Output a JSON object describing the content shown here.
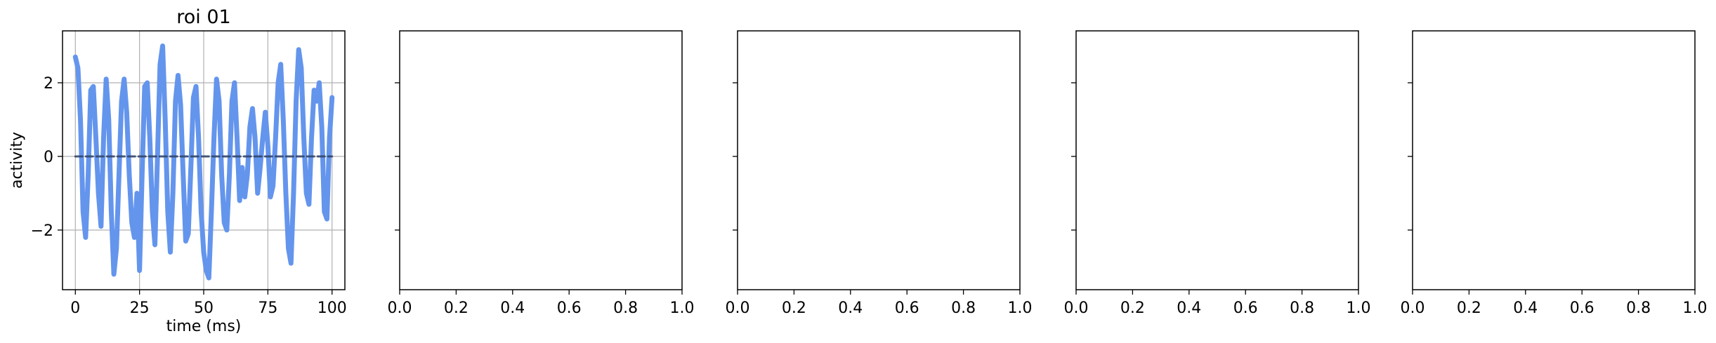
{
  "chart_data": [
    {
      "type": "line",
      "title": "roi 01",
      "xlabel": "time (ms)",
      "ylabel": "activity",
      "grid": true,
      "xlim": [
        -5,
        105
      ],
      "xticks": [
        0,
        25,
        50,
        75,
        100
      ],
      "ylim": [
        -3.62,
        3.41
      ],
      "yticks": [
        {
          "value": -2,
          "label": "−2"
        },
        0,
        2
      ],
      "series": [
        {
          "color": "#6495ed",
          "x": [
            0,
            1,
            2,
            3,
            4,
            5,
            6,
            7,
            8,
            9,
            10,
            11,
            12,
            13,
            14,
            15,
            16,
            17,
            18,
            19,
            20,
            21,
            22,
            23,
            24,
            25,
            26,
            27,
            28,
            29,
            30,
            31,
            32,
            33,
            34,
            35,
            36,
            37,
            38,
            39,
            40,
            41,
            42,
            43,
            44,
            45,
            46,
            47,
            48,
            49,
            50,
            51,
            52,
            53,
            54,
            55,
            56,
            57,
            58,
            59,
            60,
            61,
            62,
            63,
            64,
            65,
            66,
            67,
            68,
            69,
            70,
            71,
            72,
            73,
            74,
            75,
            76,
            77,
            78,
            79,
            80,
            81,
            82,
            83,
            84,
            85,
            86,
            87,
            88,
            89,
            90,
            91,
            92,
            93,
            94,
            95,
            96,
            97,
            98,
            99,
            100
          ],
          "values": [
            2.7,
            2.4,
            1.0,
            -1.5,
            -2.2,
            -0.5,
            1.8,
            1.9,
            0.5,
            -1.0,
            -1.9,
            0.5,
            2.1,
            1.0,
            -1.5,
            -3.2,
            -2.5,
            -0.5,
            1.5,
            2.1,
            1.2,
            -0.5,
            -1.8,
            -2.2,
            -1.0,
            -3.1,
            -0.5,
            1.9,
            2.0,
            0.5,
            -1.5,
            -2.4,
            0.0,
            2.5,
            3.0,
            1.0,
            -1.5,
            -2.6,
            -1.0,
            1.5,
            2.2,
            1.4,
            -0.5,
            -2.3,
            -2.1,
            -0.3,
            1.6,
            1.9,
            0.5,
            -1.5,
            -2.6,
            -3.1,
            -3.3,
            -1.5,
            0.5,
            2.1,
            1.5,
            -0.5,
            -1.8,
            -2.0,
            -0.5,
            1.5,
            2.0,
            0.5,
            -1.2,
            -0.3,
            -1.1,
            -0.5,
            0.8,
            1.3,
            0.5,
            -1.0,
            -0.3,
            0.5,
            1.2,
            0.3,
            -1.1,
            -0.8,
            0.5,
            2.0,
            2.5,
            1.0,
            -1.0,
            -2.5,
            -2.9,
            -1.0,
            1.5,
            2.9,
            2.4,
            0.5,
            -1.0,
            -1.3,
            0.5,
            1.8,
            1.5,
            2.0,
            0.8,
            -1.5,
            -1.7,
            0.5,
            1.6
          ]
        },
        {
          "color": "#2e4266",
          "dashed": true,
          "x": [
            0,
            100
          ],
          "values": [
            0,
            0
          ]
        }
      ]
    },
    {
      "type": "empty",
      "xlim": [
        0,
        1
      ],
      "xticks": [
        {
          "value": 0,
          "label": "0.0"
        },
        0.2,
        0.4,
        0.6,
        0.8,
        {
          "value": 1,
          "label": "1.0"
        }
      ]
    },
    {
      "type": "empty",
      "xlim": [
        0,
        1
      ],
      "xticks": [
        {
          "value": 0,
          "label": "0.0"
        },
        0.2,
        0.4,
        0.6,
        0.8,
        {
          "value": 1,
          "label": "1.0"
        }
      ]
    },
    {
      "type": "empty",
      "xlim": [
        0,
        1
      ],
      "xticks": [
        {
          "value": 0,
          "label": "0.0"
        },
        0.2,
        0.4,
        0.6,
        0.8,
        {
          "value": 1,
          "label": "1.0"
        }
      ]
    },
    {
      "type": "empty",
      "xlim": [
        0,
        1
      ],
      "xticks": [
        {
          "value": 0,
          "label": "0.0"
        },
        0.2,
        0.4,
        0.6,
        0.8,
        {
          "value": 1,
          "label": "1.0"
        }
      ]
    }
  ]
}
